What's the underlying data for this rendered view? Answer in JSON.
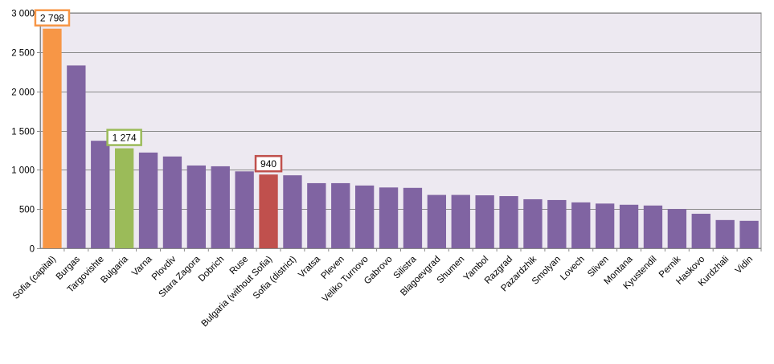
{
  "chart_data": {
    "type": "bar",
    "ylim": [
      0,
      3000
    ],
    "yticks": [
      0,
      500,
      1000,
      1500,
      2000,
      2500,
      3000
    ],
    "ytick_labels": [
      "0",
      "500",
      "1 000",
      "1 500",
      "2 000",
      "2 500",
      "3 000"
    ],
    "grid": true,
    "legend": "none",
    "categories": [
      "Sofia (capital)",
      "Burgas",
      "Targovishte",
      "Bulgaria",
      "Varna",
      "Plovdiv",
      "Stara Zagora",
      "Dobrich",
      "Ruse",
      "Bulgaria (without Sofia)",
      "Sofia (district)",
      "Vratsa",
      "Pleven",
      "Veliko Turnovo",
      "Gabrovo",
      "Silistra",
      "Blagoevgrad",
      "Shumen",
      "Yambol",
      "Razgrad",
      "Pazardzhik",
      "Smolyan",
      "Lovech",
      "Sliven",
      "Montana",
      "Kyustendil",
      "Pernik",
      "Haskovo",
      "Kurdzhali",
      "Vidin"
    ],
    "values": [
      2798,
      2330,
      1370,
      1274,
      1220,
      1170,
      1055,
      1045,
      980,
      940,
      930,
      830,
      830,
      800,
      775,
      770,
      680,
      680,
      675,
      665,
      625,
      615,
      585,
      570,
      555,
      545,
      500,
      440,
      360,
      350
    ],
    "colors": {
      "default": "#8064a2",
      "Sofia (capital)": "#f79646",
      "Bulgaria": "#9bbb59",
      "Bulgaria (without Sofia)": "#c0504d"
    },
    "plot_background": "#ede9f1",
    "annotations": [
      {
        "category": "Sofia (capital)",
        "text": "2 798",
        "border_color": "#f79646"
      },
      {
        "category": "Bulgaria",
        "text": "1 274",
        "border_color": "#9bbb59"
      },
      {
        "category": "Bulgaria (without Sofia)",
        "text": "940",
        "border_color": "#c0504d"
      }
    ]
  }
}
